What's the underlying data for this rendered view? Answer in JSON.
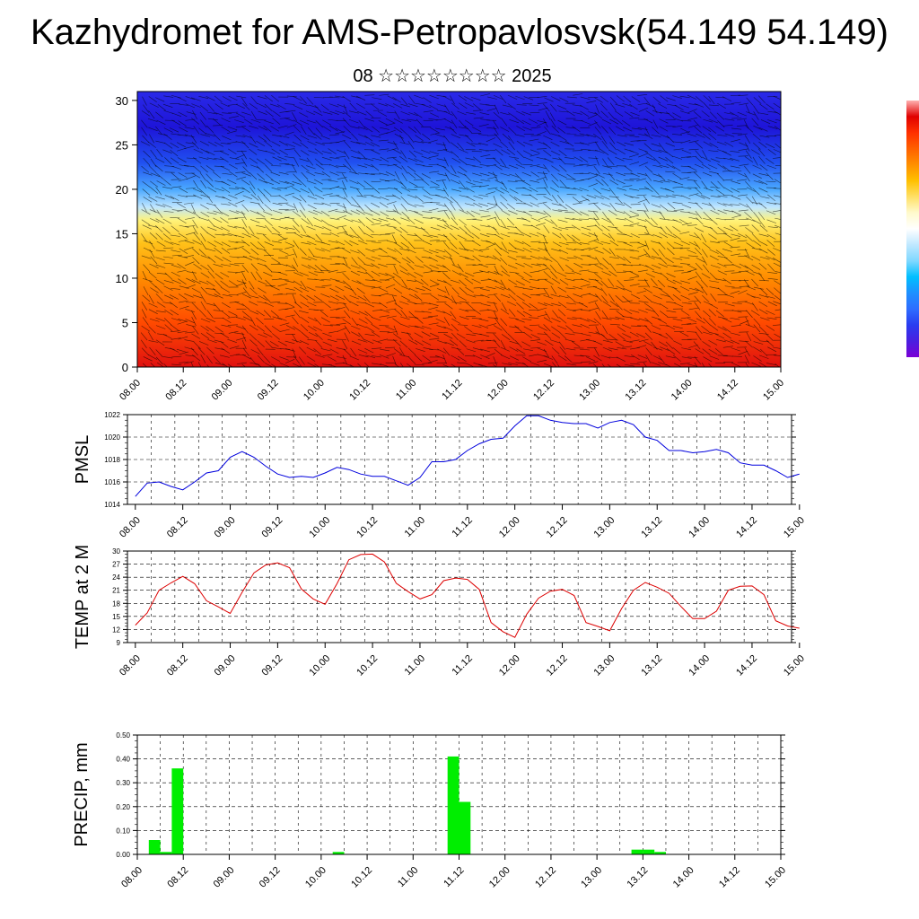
{
  "page": {
    "title": "Kazhydromet for AMS-Petropavlosvsk(54.149 54.149)",
    "subtitle": "08 ☆☆☆☆☆☆☆☆ 2025"
  },
  "colors": {
    "pmsl_line": "#0000dd",
    "temp_line": "#dd0000",
    "precip_bar": "#00ee00",
    "grid": "#000000",
    "colorbar": [
      "#7b00d6",
      "#4a1fe0",
      "#2a3cf0",
      "#2f6cff",
      "#1e90ff",
      "#00bfff",
      "#7fd8ff",
      "#bfe8ff",
      "#ffffff",
      "#fffacd",
      "#ffe066",
      "#ffc000",
      "#ff9000",
      "#ff6000",
      "#ff3000",
      "#e00000",
      "#ffb0b0"
    ]
  },
  "chart_data": [
    {
      "type": "heatmap",
      "title": "",
      "xlabel": "",
      "ylabel": "",
      "ylim": [
        0,
        31
      ],
      "y_ticks": [
        "0",
        "5",
        "10",
        "15",
        "20",
        "25",
        "30"
      ],
      "x_ticks": [
        "08.00",
        "08.12",
        "09.00",
        "09.12",
        "10.00",
        "10.12",
        "11.00",
        "11.12",
        "12.00",
        "12.12",
        "13.00",
        "13.12",
        "14.00",
        "14.12",
        "15.00"
      ],
      "color_bands": [
        {
          "level": 0,
          "color": "#e01010"
        },
        {
          "level": 5,
          "color": "#ff4a00"
        },
        {
          "level": 10,
          "color": "#ff8c00"
        },
        {
          "level": 14,
          "color": "#ffc21a"
        },
        {
          "level": 16.5,
          "color": "#fff37a"
        },
        {
          "level": 18,
          "color": "#bfe6ff"
        },
        {
          "level": 20,
          "color": "#4aa8ff"
        },
        {
          "level": 23,
          "color": "#2050f0"
        },
        {
          "level": 27,
          "color": "#1e14d8"
        },
        {
          "level": 31,
          "color": "#2a2ae8"
        }
      ],
      "grid": false,
      "overlay": "wind vectors"
    },
    {
      "type": "line",
      "ylabel": "PMSL",
      "ylim": [
        1014,
        1022
      ],
      "y_ticks": [
        "1014",
        "1016",
        "1018",
        "1020",
        "1022"
      ],
      "x_ticks": [
        "08.00",
        "08.12",
        "09.00",
        "09.12",
        "10.00",
        "10.12",
        "11.00",
        "11.12",
        "12.00",
        "12.12",
        "13.00",
        "13.12",
        "14.00",
        "14.12",
        "15.00"
      ],
      "x_step_hours": 3,
      "grid": true,
      "series": [
        {
          "values": [
            1014.7,
            1015.9,
            1016.0,
            1015.6,
            1015.3,
            1016.0,
            1016.8,
            1017.0,
            1018.2,
            1018.7,
            1018.2,
            1017.4,
            1016.7,
            1016.4,
            1016.5,
            1016.4,
            1016.8,
            1017.3,
            1017.1,
            1016.7,
            1016.5,
            1016.5,
            1016.1,
            1015.7,
            1016.4,
            1017.8,
            1017.8,
            1018.0,
            1018.8,
            1019.4,
            1019.8,
            1019.9,
            1021.0,
            1021.9,
            1021.9,
            1021.5,
            1021.3,
            1021.2,
            1021.2,
            1020.8,
            1021.3,
            1021.5,
            1021.1,
            1020.0,
            1019.7,
            1018.8,
            1018.8,
            1018.6,
            1018.7,
            1018.9,
            1018.6,
            1017.7,
            1017.5,
            1017.5,
            1017.0,
            1016.4,
            1016.7
          ]
        }
      ]
    },
    {
      "type": "line",
      "ylabel": "TEMP at 2 M",
      "ylim": [
        9,
        30
      ],
      "y_ticks": [
        "9",
        "12",
        "15",
        "18",
        "21",
        "24",
        "27",
        "30"
      ],
      "x_ticks": [
        "08.00",
        "08.12",
        "09.00",
        "09.12",
        "10.00",
        "10.12",
        "11.00",
        "11.12",
        "12.00",
        "12.12",
        "13.00",
        "13.12",
        "14.00",
        "14.12",
        "15.00"
      ],
      "x_step_hours": 3,
      "grid": true,
      "series": [
        {
          "values": [
            13.0,
            15.8,
            21.0,
            22.7,
            24.2,
            22.5,
            18.6,
            17.2,
            15.7,
            20.5,
            25.0,
            26.8,
            27.3,
            26.2,
            21.3,
            19.0,
            17.8,
            22.5,
            28.0,
            29.2,
            29.3,
            27.5,
            22.6,
            20.7,
            19.0,
            20.0,
            23.2,
            23.8,
            23.5,
            21.2,
            13.6,
            11.5,
            10.2,
            15.5,
            19.2,
            20.8,
            21.2,
            19.8,
            13.6,
            12.7,
            11.7,
            16.8,
            21.0,
            22.8,
            21.7,
            20.3,
            17.3,
            14.5,
            14.5,
            16.2,
            21.0,
            21.9,
            22.0,
            20.0,
            14.0,
            12.8,
            12.3
          ]
        }
      ]
    },
    {
      "type": "bar",
      "ylabel": "PRECIP, mm",
      "ylim": [
        0,
        0.5
      ],
      "y_ticks": [
        "0.00",
        "0.10",
        "0.20",
        "0.30",
        "0.40",
        "0.50"
      ],
      "x_ticks": [
        "08.00",
        "08.12",
        "09.00",
        "09.12",
        "10.00",
        "10.12",
        "11.00",
        "11.12",
        "12.00",
        "12.12",
        "13.00",
        "13.12",
        "14.00",
        "14.12",
        "15.00"
      ],
      "x_step_hours": 3,
      "grid": true,
      "bins_hours": [
        3,
        6,
        9,
        51,
        81,
        84,
        129,
        132,
        135
      ],
      "values": [
        0.06,
        0.01,
        0.36,
        0.01,
        0.41,
        0.22,
        0.02,
        0.02,
        0.01
      ]
    }
  ]
}
